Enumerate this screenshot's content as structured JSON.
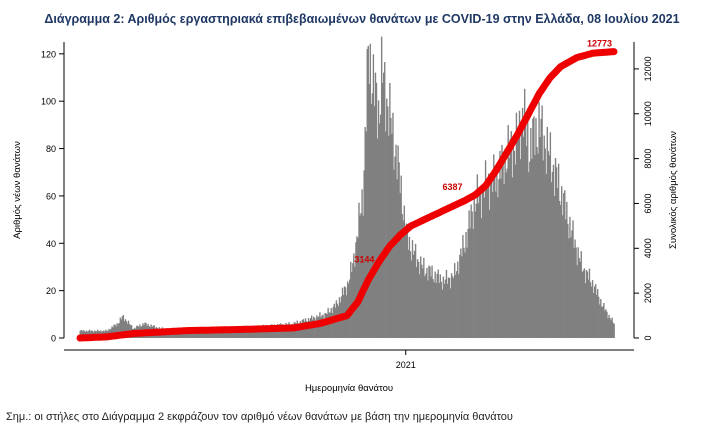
{
  "header": {
    "title": "Διάγραμμα 2: Αριθμός εργαστηριακά επιβεβαιωμένων θανάτων με COVID-19 στην Ελλάδα, 08 Ιουλίου 2021"
  },
  "footer": {
    "note": "Σημ.: οι στήλες στο Διάγραμμα 2 εκφράζουν τον αριθμό νέων θανάτων με βάση την ημερομηνία θανάτου"
  },
  "chart_data": {
    "type": "bar",
    "xlabel": "Ημερομηνία θανάτου",
    "ylabel": "Αριθμός νέων θανάτων",
    "y2label": "Συνολικός αριθμός θανάτων",
    "ylim": [
      0,
      125
    ],
    "yticks": [
      0,
      20,
      40,
      60,
      80,
      100,
      120
    ],
    "y2lim": [
      0,
      13200
    ],
    "y2ticks": [
      0,
      2000,
      4000,
      6000,
      8000,
      10000,
      12000
    ],
    "x_tick_labels": [
      "2021"
    ],
    "x_tick_positions": [
      0.61
    ],
    "colors": {
      "bars": "#808080",
      "cumulative": "#ee0000",
      "annotations": "#cc0000"
    },
    "daily_anchors": [
      [
        0.0,
        3
      ],
      [
        0.05,
        3
      ],
      [
        0.07,
        6
      ],
      [
        0.08,
        9
      ],
      [
        0.1,
        4
      ],
      [
        0.12,
        6
      ],
      [
        0.15,
        4
      ],
      [
        0.2,
        3
      ],
      [
        0.25,
        4
      ],
      [
        0.3,
        4
      ],
      [
        0.35,
        5
      ],
      [
        0.4,
        6
      ],
      [
        0.43,
        8
      ],
      [
        0.46,
        10
      ],
      [
        0.48,
        14
      ],
      [
        0.5,
        22
      ],
      [
        0.51,
        30
      ],
      [
        0.52,
        45
      ],
      [
        0.53,
        62
      ],
      [
        0.535,
        90
      ],
      [
        0.54,
        122
      ],
      [
        0.55,
        105
      ],
      [
        0.56,
        95
      ],
      [
        0.565,
        112
      ],
      [
        0.575,
        100
      ],
      [
        0.59,
        80
      ],
      [
        0.6,
        65
      ],
      [
        0.61,
        45
      ],
      [
        0.62,
        38
      ],
      [
        0.64,
        30
      ],
      [
        0.66,
        27
      ],
      [
        0.68,
        24
      ],
      [
        0.7,
        26
      ],
      [
        0.72,
        40
      ],
      [
        0.74,
        58
      ],
      [
        0.76,
        64
      ],
      [
        0.78,
        68
      ],
      [
        0.8,
        78
      ],
      [
        0.82,
        83
      ],
      [
        0.83,
        96
      ],
      [
        0.84,
        80
      ],
      [
        0.86,
        90
      ],
      [
        0.88,
        76
      ],
      [
        0.9,
        62
      ],
      [
        0.92,
        45
      ],
      [
        0.94,
        30
      ],
      [
        0.96,
        23
      ],
      [
        0.98,
        13
      ],
      [
        1.0,
        6
      ]
    ],
    "cumulative_anchors": [
      [
        0.0,
        0
      ],
      [
        0.05,
        50
      ],
      [
        0.1,
        200
      ],
      [
        0.2,
        330
      ],
      [
        0.3,
        380
      ],
      [
        0.4,
        450
      ],
      [
        0.45,
        650
      ],
      [
        0.5,
        1000
      ],
      [
        0.52,
        1600
      ],
      [
        0.54,
        2600
      ],
      [
        0.56,
        3400
      ],
      [
        0.58,
        4100
      ],
      [
        0.6,
        4600
      ],
      [
        0.62,
        5000
      ],
      [
        0.66,
        5450
      ],
      [
        0.7,
        5900
      ],
      [
        0.72,
        6120
      ],
      [
        0.74,
        6380
      ],
      [
        0.76,
        6800
      ],
      [
        0.78,
        7500
      ],
      [
        0.8,
        8300
      ],
      [
        0.82,
        9100
      ],
      [
        0.84,
        10000
      ],
      [
        0.86,
        10900
      ],
      [
        0.88,
        11600
      ],
      [
        0.9,
        12100
      ],
      [
        0.93,
        12500
      ],
      [
        0.96,
        12700
      ],
      [
        1.0,
        12773
      ]
    ],
    "cumulative_labels": [
      {
        "text": "3144",
        "x": 0.555,
        "y": 3144
      },
      {
        "text": "6387",
        "x": 0.72,
        "y": 6387
      },
      {
        "text": "12773",
        "x": 1.0,
        "y": 12773
      }
    ]
  }
}
